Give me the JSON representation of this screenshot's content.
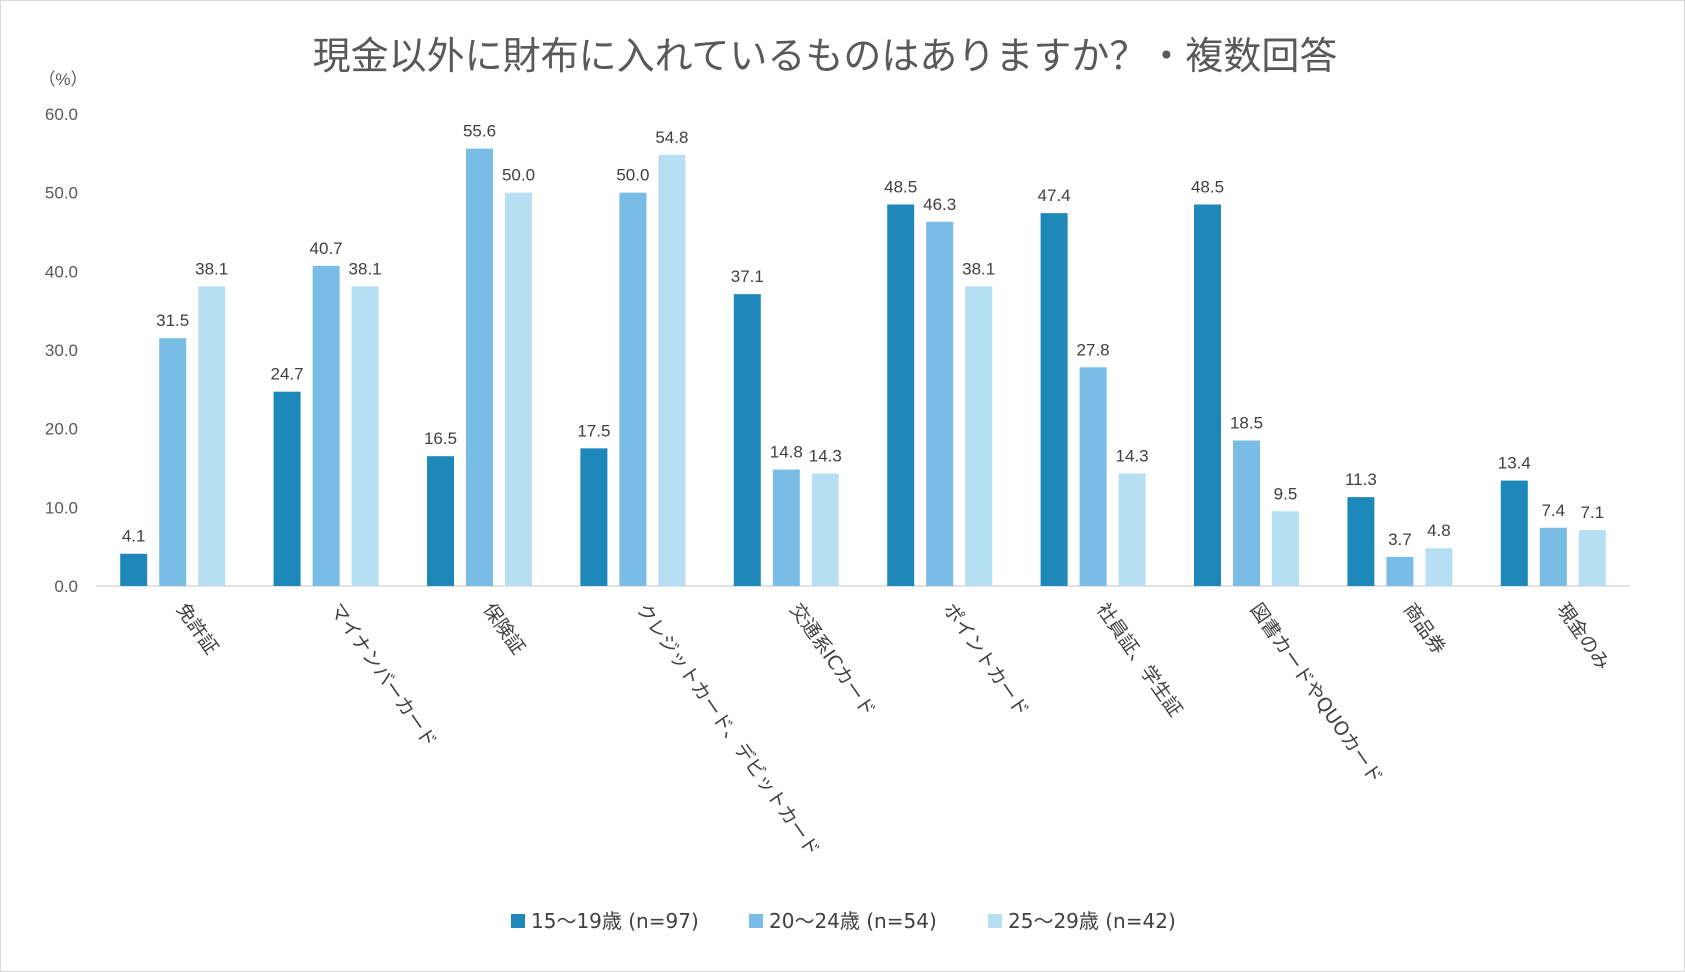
{
  "chart_data": {
    "type": "bar",
    "title": "現金以外に財布に入れているものはありますか？・複数回答",
    "unit_label": "（%）",
    "ylim": [
      0,
      60
    ],
    "yticks": [
      "0.0",
      "10.0",
      "20.0",
      "30.0",
      "40.0",
      "50.0",
      "60.0"
    ],
    "grid": false,
    "legend_position": "bottom",
    "categories": [
      "免許証",
      "マイナンバーカード",
      "保険証",
      "クレジットカード、デビットカード",
      "交通系ICカード",
      "ポイントカード",
      "社員証、学生証",
      "図書カードやQUOカード",
      "商品券",
      "現金のみ"
    ],
    "series": [
      {
        "name": "15〜19歳 (n=97)",
        "color": "#1f88bb",
        "values": [
          4.1,
          24.7,
          16.5,
          17.5,
          37.1,
          48.5,
          47.4,
          48.5,
          11.3,
          13.4
        ]
      },
      {
        "name": "20〜24歳 (n=54)",
        "color": "#79bde7",
        "values": [
          31.5,
          40.7,
          55.6,
          50.0,
          14.8,
          46.3,
          27.8,
          18.5,
          3.7,
          7.4
        ]
      },
      {
        "name": "25〜29歳 (n=42)",
        "color": "#b6dff3",
        "values": [
          38.1,
          38.1,
          50.0,
          54.8,
          14.3,
          38.1,
          14.3,
          9.5,
          4.8,
          7.1
        ]
      }
    ]
  }
}
